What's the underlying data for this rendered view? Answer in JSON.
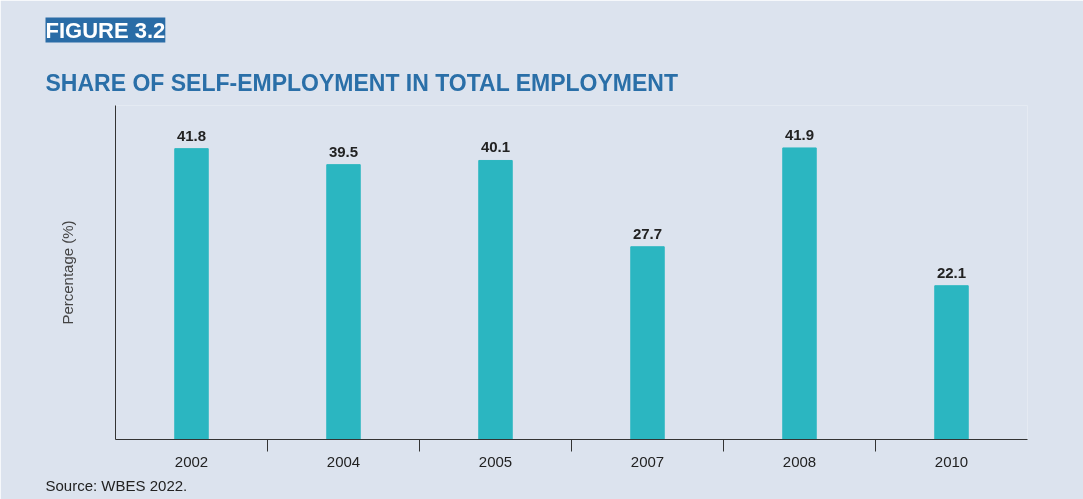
{
  "chart_data": {
    "type": "bar",
    "title": "SHARE OF SELF-EMPLOYMENT IN TOTAL EMPLOYMENT",
    "subtitle": "FIGURE 3.2",
    "ylabel": "Percentage (%)",
    "categories": [
      "2002",
      "2004",
      "2005",
      "2007",
      "2008",
      "2010"
    ],
    "values": [
      41.8,
      39.5,
      40.1,
      27.7,
      41.9,
      22.1
    ],
    "color": "#2bb6c1",
    "ylim": [
      0,
      48
    ],
    "data_labels": true,
    "grid": false,
    "tick_labels": "x",
    "annotations": [
      "Source: WBES 2022."
    ]
  }
}
